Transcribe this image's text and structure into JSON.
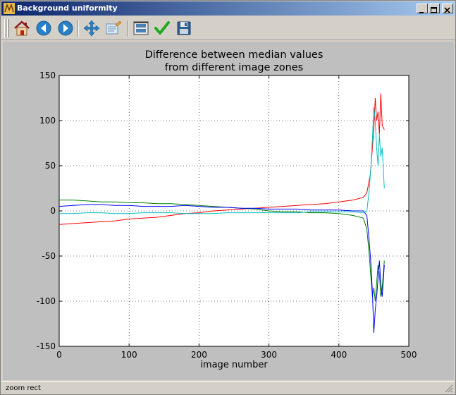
{
  "window": {
    "title": "Background uniformity"
  },
  "toolbar": {
    "buttons": [
      {
        "name": "home",
        "icon": "home-icon"
      },
      {
        "name": "back",
        "icon": "back-arrow-icon"
      },
      {
        "name": "forward",
        "icon": "forward-arrow-icon"
      },
      {
        "name": "pan",
        "icon": "move-arrows-icon"
      },
      {
        "name": "zoom",
        "icon": "zoom-rect-icon"
      },
      {
        "name": "configure-subplots",
        "icon": "subplots-icon"
      },
      {
        "name": "edit-parameters",
        "icon": "checkmark-icon"
      },
      {
        "name": "save",
        "icon": "floppy-disk-icon"
      }
    ]
  },
  "status": {
    "text": "zoom rect"
  },
  "chart_data": {
    "type": "line",
    "title": "Difference between median values\nfrom different image zones",
    "title_lines": [
      "Difference between median values",
      "from different image zones"
    ],
    "xlabel": "image number",
    "ylabel": "",
    "xlim": [
      0,
      500
    ],
    "ylim": [
      -150,
      150
    ],
    "xticks": [
      0,
      100,
      200,
      300,
      400,
      500
    ],
    "yticks": [
      -150,
      -100,
      -50,
      0,
      50,
      100,
      150
    ],
    "grid": true,
    "background": "#bfbfbf",
    "series": [
      {
        "color": "#ff0000",
        "x": [
          0,
          20,
          40,
          60,
          80,
          100,
          120,
          140,
          160,
          180,
          200,
          220,
          240,
          260,
          280,
          300,
          320,
          340,
          360,
          380,
          400,
          420,
          435,
          440,
          445,
          448,
          450,
          452,
          454,
          456,
          458,
          460,
          462,
          465
        ],
        "y": [
          -15,
          -14,
          -13,
          -12,
          -11,
          -9,
          -8,
          -7,
          -5,
          -3,
          -2,
          0,
          1,
          2,
          3,
          4,
          5,
          6,
          7,
          8,
          10,
          12,
          15,
          20,
          40,
          70,
          90,
          125,
          100,
          110,
          85,
          130,
          95,
          90
        ]
      },
      {
        "color": "#008000",
        "x": [
          0,
          20,
          40,
          60,
          80,
          100,
          120,
          140,
          160,
          180,
          200,
          220,
          240,
          260,
          280,
          300,
          320,
          340,
          360,
          380,
          400,
          420,
          435,
          440,
          443,
          446,
          448,
          450,
          452,
          454,
          456,
          458,
          460,
          462,
          465
        ],
        "y": [
          12,
          12,
          11,
          10,
          10,
          9,
          9,
          8,
          8,
          7,
          6,
          5,
          4,
          3,
          2,
          0,
          -1,
          -1,
          -2,
          -2,
          -3,
          -5,
          -8,
          -20,
          -45,
          -75,
          -95,
          -85,
          -100,
          -80,
          -60,
          -70,
          -95,
          -85,
          -55
        ]
      },
      {
        "color": "#0000ff",
        "x": [
          0,
          20,
          40,
          60,
          80,
          100,
          120,
          140,
          160,
          180,
          200,
          220,
          240,
          260,
          280,
          300,
          320,
          340,
          360,
          380,
          400,
          420,
          435,
          440,
          443,
          446,
          448,
          450,
          452,
          454,
          456,
          458,
          460,
          462,
          465
        ],
        "y": [
          5,
          6,
          7,
          7,
          6,
          6,
          5,
          5,
          5,
          6,
          5,
          4,
          4,
          3,
          3,
          2,
          2,
          2,
          1,
          1,
          1,
          0,
          0,
          -5,
          -30,
          -60,
          -90,
          -135,
          -110,
          -95,
          -75,
          -55,
          -80,
          -95,
          -60
        ]
      },
      {
        "color": "#00bfbf",
        "x": [
          0,
          20,
          40,
          60,
          80,
          100,
          120,
          140,
          160,
          180,
          200,
          220,
          240,
          260,
          280,
          300,
          320,
          340,
          360,
          380,
          400,
          420,
          435,
          440,
          443,
          446,
          448,
          450,
          452,
          454,
          456,
          458,
          460,
          462,
          465
        ],
        "y": [
          -3,
          -3,
          -2,
          -2,
          -3,
          -3,
          -2,
          -2,
          -2,
          -3,
          -3,
          -3,
          -2,
          -2,
          -2,
          -2,
          -2,
          -2,
          -1,
          -1,
          -1,
          -1,
          -2,
          0,
          20,
          50,
          80,
          115,
          100,
          70,
          50,
          85,
          60,
          70,
          25
        ]
      }
    ]
  }
}
